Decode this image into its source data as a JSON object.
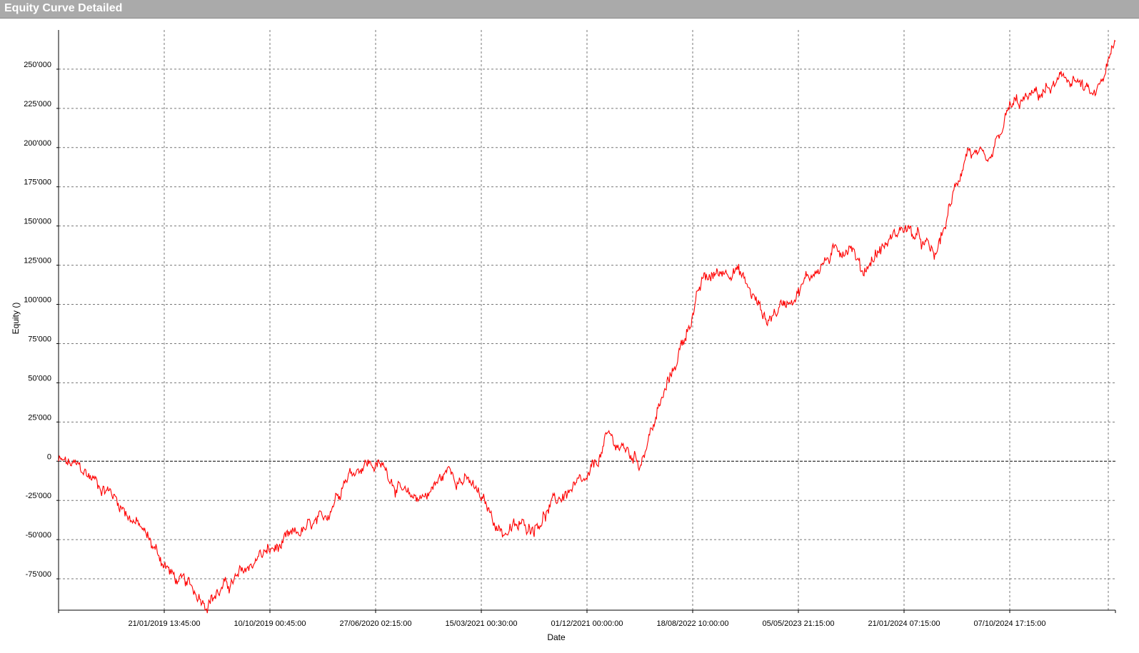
{
  "window": {
    "title": "Equity Curve Detailed"
  },
  "chart_data": {
    "type": "line",
    "xlabel": "Date",
    "ylabel": "Equity ()",
    "x_tick_labels": [
      "21/01/2019 13:45:00",
      "10/10/2019 00:45:00",
      "27/06/2020 02:15:00",
      "15/03/2021 00:30:00",
      "01/12/2021 00:00:00",
      "18/08/2022 10:00:00",
      "05/05/2023 21:15:00",
      "21/01/2024 07:15:00",
      "07/10/2024 17:15:00"
    ],
    "y_ticks": [
      -75000,
      -50000,
      -25000,
      0,
      25000,
      50000,
      75000,
      100000,
      125000,
      150000,
      175000,
      200000,
      225000,
      250000
    ],
    "y_tick_labels": [
      "-75'000",
      "-50'000",
      "-25'000",
      "0",
      "25'000",
      "50'000",
      "75'000",
      "100'000",
      "125'000",
      "150'000",
      "175'000",
      "200'000",
      "225'000",
      "250'000"
    ],
    "ylim": [
      -95000,
      275000
    ],
    "grid": true,
    "zero_line": true,
    "series": [
      {
        "color": "#ff0000",
        "x": [
          0,
          0.02,
          0.05,
          0.08,
          0.11,
          0.14,
          0.17,
          0.19,
          0.21,
          0.23,
          0.25,
          0.27,
          0.29,
          0.31,
          0.33,
          0.35,
          0.37,
          0.39,
          0.42,
          0.45,
          0.48,
          0.5,
          0.52,
          0.55,
          0.58,
          0.61,
          0.64,
          0.67,
          0.7,
          0.72,
          0.75,
          0.76,
          0.77,
          0.8,
          0.83,
          0.86,
          0.88,
          0.9,
          0.93,
          0.96,
          0.98,
          1.0
        ],
        "y": [
          0,
          -5000,
          -20000,
          -45000,
          -75000,
          -88000,
          -75000,
          -60000,
          -55000,
          -45000,
          -40000,
          -10000,
          0,
          -5000,
          -25000,
          -20000,
          -5000,
          -15000,
          -45000,
          -40000,
          -20000,
          -15000,
          15000,
          0,
          55000,
          115000,
          125000,
          90000,
          110000,
          125000,
          140000,
          120000,
          130000,
          150000,
          130000,
          200000,
          185000,
          225000,
          235000,
          245000,
          230000,
          265000
        ]
      }
    ]
  }
}
